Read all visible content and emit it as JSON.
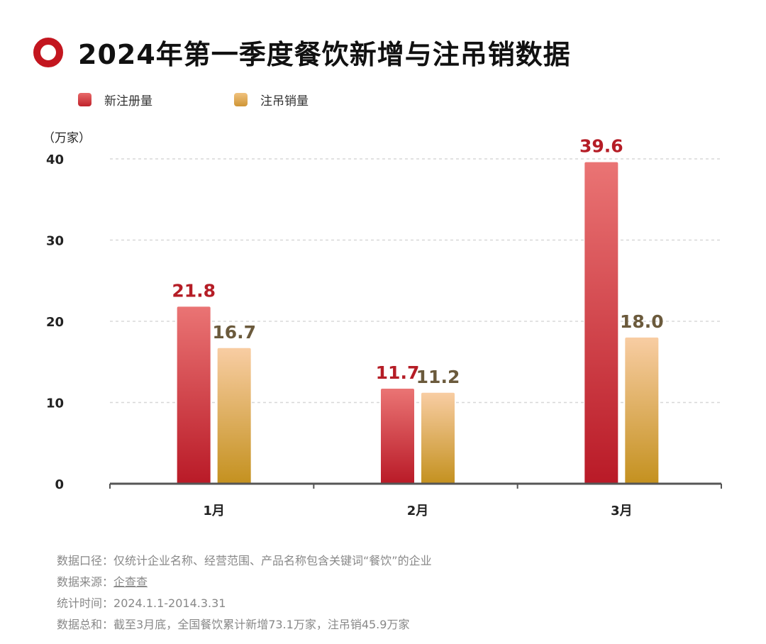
{
  "title": "2024年第一季度餐饮新增与注吊销数据",
  "chart_data": {
    "type": "bar",
    "title": "2024年第一季度餐饮新增与注吊销数据",
    "ylabel": "（万家）",
    "xlabel": "",
    "categories": [
      "1月",
      "2月",
      "3月"
    ],
    "series": [
      {
        "name": "新注册量",
        "values": [
          21.8,
          11.7,
          39.6
        ],
        "labels": [
          "21.8",
          "11.7",
          "39.6"
        ],
        "color": "#c8232c",
        "label_color": "#b51d26"
      },
      {
        "name": "注吊销量",
        "values": [
          16.7,
          11.2,
          18.0
        ],
        "labels": [
          "16.7",
          "11.2",
          "18.0"
        ],
        "color": "#d9a24a",
        "label_color": "#6b5a3c"
      }
    ],
    "ylim": [
      0,
      40
    ],
    "yticks": [
      "0",
      "10",
      "20",
      "30",
      "40"
    ],
    "grid": true,
    "legend_position": "top-left"
  },
  "notes": {
    "scope_label": "数据口径：",
    "scope": "仅统计企业名称、经营范围、产品名称包含关键词“餐饮”的企业",
    "source_label": "数据来源：",
    "source": "企查查",
    "period_label": "统计时间：",
    "period": "2024.1.1-2014.3.31",
    "total_label": "数据总和：",
    "total": "截至3月底，全国餐饮累计新增73.1万家，注吊销45.9万家"
  }
}
